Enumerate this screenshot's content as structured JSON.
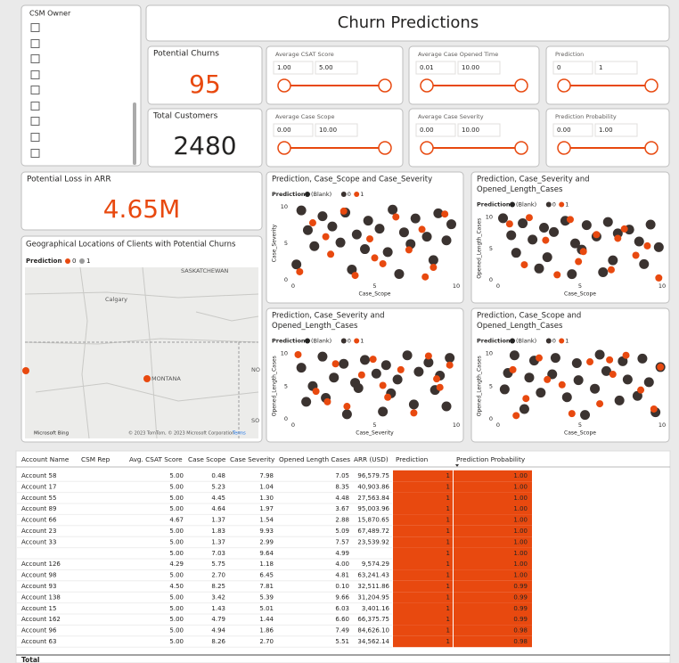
{
  "header": {
    "title": "Churn Predictions"
  },
  "csm_slicer": {
    "title": "CSM Owner"
  },
  "cards": [
    {
      "label": "Potential Churns",
      "value": "95"
    },
    {
      "label": "Total Customers",
      "value": "2480"
    },
    {
      "label": "Potential Loss in ARR",
      "value": "4.65M"
    }
  ],
  "slicers": [
    {
      "label": "Average CSAT Score",
      "min": "1.00",
      "max": "5.00"
    },
    {
      "label": "Average Case Opened Time",
      "min": "0.01",
      "max": "10.00"
    },
    {
      "label": "Prediction",
      "min": "0",
      "max": "1"
    },
    {
      "label": "Average Case Scope",
      "min": "0.00",
      "max": "10.00"
    },
    {
      "label": "Average Case Severity",
      "min": "0.00",
      "max": "10.00"
    },
    {
      "label": "Prediction Probability",
      "min": "0.00",
      "max": "1.00"
    }
  ],
  "map": {
    "title": "Geographical Locations of Clients with Potential Churns",
    "legend_title": "Prediction",
    "legend": [
      {
        "name": "0",
        "color": "#e8490f"
      },
      {
        "name": "1",
        "color": "#9a9a9a"
      }
    ],
    "places": [
      "SASKATCHEWAN",
      "Calgary",
      "MONTANA",
      "NO",
      "SO"
    ],
    "attribution": "© 2023 TomTom, © 2023 Microsoft Corporation",
    "terms": "Terms",
    "brand": "Microsoft Bing"
  },
  "chart_data": [
    {
      "type": "scatter",
      "title": "Prediction, Case_Scope and Case_Severity",
      "legend_title": "Prediction",
      "x_label": "Case_Scope",
      "y_label": "Case_Severity",
      "xlim": [
        0,
        10
      ],
      "ylim": [
        0,
        10
      ],
      "xticks": [
        0,
        5,
        10
      ],
      "yticks": [
        0,
        5,
        10
      ],
      "series": [
        {
          "name": "(Blank)",
          "color": "#252423",
          "x": [],
          "y": []
        },
        {
          "name": "0",
          "color": "#3b3330",
          "x": [
            0.5,
            1.8,
            3.2,
            4.6,
            6.1,
            7.5,
            8.9,
            9.7,
            0.9,
            2.4,
            3.9,
            5.3,
            6.8,
            8.2,
            9.4,
            1.3,
            2.9,
            4.4,
            5.8,
            7.2,
            8.6,
            0.2,
            3.6,
            6.5
          ],
          "y": [
            9.5,
            8.7,
            9.2,
            8.1,
            9.6,
            8.4,
            9.1,
            7.6,
            6.8,
            7.3,
            6.2,
            7.0,
            6.5,
            5.9,
            5.4,
            4.6,
            5.1,
            4.2,
            3.8,
            4.9,
            2.7,
            2.1,
            1.4,
            0.8
          ]
        },
        {
          "name": "1",
          "color": "#e8490f",
          "x": [
            0.4,
            1.2,
            2.3,
            3.1,
            3.8,
            4.7,
            5.5,
            6.3,
            7.1,
            7.9,
            8.6,
            9.3,
            2.0,
            5.0,
            8.1
          ],
          "y": [
            1.1,
            7.8,
            3.5,
            9.4,
            0.6,
            5.6,
            2.2,
            8.6,
            4.1,
            6.9,
            1.7,
            9.0,
            5.9,
            3.0,
            0.4
          ]
        }
      ]
    },
    {
      "type": "scatter",
      "title": [
        "Prediction, Case_Severity and",
        "Opened_Length_Cases"
      ],
      "legend_title": "Prediction",
      "x_label": "Case_Scope",
      "y_label": "Opened_Length_Cases",
      "xlim": [
        0,
        10
      ],
      "ylim": [
        0,
        10
      ],
      "xticks": [
        0,
        5,
        10
      ],
      "yticks": [
        0,
        5,
        10
      ],
      "series": [
        {
          "name": "(Blank)",
          "color": "#252423",
          "x": [],
          "y": []
        },
        {
          "name": "0",
          "color": "#3b3330",
          "x": [
            0.3,
            1.5,
            2.8,
            4.1,
            5.4,
            6.7,
            8.0,
            9.3,
            0.8,
            2.1,
            3.4,
            4.7,
            6.0,
            7.3,
            8.6,
            9.8,
            1.1,
            3.0,
            5.1,
            7.0,
            8.9,
            2.5,
            4.5,
            6.4
          ],
          "y": [
            9.8,
            9.0,
            8.3,
            9.4,
            8.7,
            9.2,
            8.0,
            8.8,
            7.1,
            6.4,
            7.6,
            5.8,
            6.9,
            7.4,
            6.1,
            5.2,
            4.3,
            3.6,
            4.8,
            3.1,
            2.5,
            1.8,
            0.9,
            1.2
          ]
        },
        {
          "name": "1",
          "color": "#e8490f",
          "x": [
            0.7,
            1.6,
            2.9,
            3.6,
            4.4,
            5.2,
            6.0,
            6.9,
            7.7,
            8.4,
            9.1,
            9.8,
            1.9,
            4.9,
            7.3
          ],
          "y": [
            8.9,
            2.4,
            6.3,
            0.8,
            9.6,
            4.5,
            7.2,
            1.6,
            8.1,
            3.9,
            5.4,
            0.3,
            9.9,
            2.9,
            6.6
          ]
        }
      ]
    },
    {
      "type": "scatter",
      "title": [
        "Prediction, Case_Severity and",
        "Opened_Length_Cases"
      ],
      "legend_title": "Prediction",
      "x_label": "Case_Severity",
      "y_label": "Opened_Length_Cases",
      "xlim": [
        0,
        10
      ],
      "ylim": [
        0,
        10
      ],
      "xticks": [
        0,
        5,
        10
      ],
      "yticks": [
        0,
        5,
        10
      ],
      "series": [
        {
          "name": "(Blank)",
          "color": "#252423",
          "x": [],
          "y": []
        },
        {
          "name": "0",
          "color": "#3b3330",
          "x": [
            9.6,
            8.3,
            7.0,
            5.7,
            4.4,
            3.1,
            1.8,
            0.5,
            9.0,
            7.7,
            6.4,
            5.1,
            3.8,
            2.5,
            1.2,
            8.7,
            6.0,
            4.0,
            2.0,
            0.8,
            9.4,
            5.5,
            3.3,
            7.4
          ],
          "y": [
            9.3,
            8.6,
            9.7,
            8.2,
            9.0,
            8.4,
            9.5,
            7.8,
            6.6,
            7.2,
            6.0,
            6.9,
            5.5,
            6.3,
            5.0,
            4.4,
            3.9,
            4.7,
            3.2,
            2.6,
            1.9,
            1.1,
            0.7,
            2.2
          ]
        },
        {
          "name": "1",
          "color": "#e8490f",
          "x": [
            0.3,
            1.4,
            2.6,
            3.3,
            4.2,
            4.9,
            5.8,
            6.6,
            7.4,
            8.3,
            9.0,
            9.6,
            2.1,
            5.5,
            8.8
          ],
          "y": [
            9.8,
            4.2,
            8.4,
            1.9,
            6.7,
            9.1,
            3.3,
            7.5,
            0.9,
            9.6,
            4.8,
            8.2,
            2.6,
            5.1,
            6.1
          ]
        }
      ]
    },
    {
      "type": "scatter",
      "title": [
        "Prediction, Case_Scope and",
        "Opened_Length_Cases"
      ],
      "legend_title": "Prediction",
      "x_label": "Case_Scope",
      "y_label": "Opened_Length_Cases",
      "xlim": [
        0,
        10
      ],
      "ylim": [
        0,
        10
      ],
      "xticks": [
        0,
        5,
        10
      ],
      "yticks": [
        0,
        5,
        10
      ],
      "series": [
        {
          "name": "(Blank)",
          "color": "#252423",
          "x": [],
          "y": []
        },
        {
          "name": "0",
          "color": "#3b3330",
          "x": [
            1.0,
            2.2,
            3.5,
            4.8,
            6.2,
            7.6,
            8.8,
            9.9,
            0.6,
            1.9,
            3.3,
            4.9,
            6.6,
            7.9,
            9.2,
            0.4,
            2.6,
            4.2,
            5.9,
            7.4,
            8.5,
            1.6,
            5.3,
            9.6
          ],
          "y": [
            9.7,
            8.9,
            9.3,
            8.5,
            9.8,
            8.8,
            9.2,
            7.9,
            7.0,
            6.3,
            6.8,
            5.9,
            7.3,
            6.0,
            5.6,
            4.5,
            4.0,
            3.3,
            4.6,
            2.8,
            3.5,
            1.5,
            0.6,
            1.0
          ]
        },
        {
          "name": "1",
          "color": "#e8490f",
          "x": [
            0.9,
            1.7,
            2.5,
            3.9,
            4.5,
            5.6,
            6.2,
            7.0,
            7.8,
            8.7,
            9.5,
            1.1,
            3.0,
            6.8,
            9.9
          ],
          "y": [
            7.5,
            3.1,
            9.3,
            5.2,
            0.8,
            8.7,
            2.3,
            6.8,
            9.7,
            4.4,
            1.5,
            0.5,
            6.0,
            9.0,
            7.9
          ]
        }
      ]
    }
  ],
  "table": {
    "headers": [
      "Account Name",
      "CSM Rep",
      "Avg. CSAT Score",
      "Case Scope",
      "Case Severity",
      "Opened Length Cases",
      "ARR (USD)",
      "Prediction",
      "Prediction Probability"
    ],
    "rows": [
      [
        "Account 58",
        null,
        "5.00",
        "0.48",
        "7.98",
        "7.05",
        "96,579.75",
        "1",
        "1.00"
      ],
      [
        "Account 17",
        null,
        "5.00",
        "5.23",
        "1.04",
        "8.35",
        "40,903.86",
        "1",
        "1.00"
      ],
      [
        "Account 55",
        null,
        "5.00",
        "4.45",
        "1.30",
        "4.48",
        "27,563.84",
        "1",
        "1.00"
      ],
      [
        "Account 89",
        null,
        "5.00",
        "4.64",
        "1.97",
        "3.67",
        "95,003.96",
        "1",
        "1.00"
      ],
      [
        "Account 66",
        null,
        "4.67",
        "1.37",
        "1.54",
        "2.88",
        "15,870.65",
        "1",
        "1.00"
      ],
      [
        "Account 23",
        null,
        "5.00",
        "1.83",
        "9.93",
        "5.09",
        "67,489.72",
        "1",
        "1.00"
      ],
      [
        "Account 33",
        null,
        "5.00",
        "1.37",
        "2.99",
        "7.57",
        "23,539.92",
        "1",
        "1.00"
      ],
      [
        null,
        null,
        "5.00",
        "7.03",
        "9.64",
        "4.99",
        null,
        "1",
        "1.00"
      ],
      [
        "Account 126",
        null,
        "4.29",
        "5.75",
        "1.18",
        "4.00",
        "9,574.29",
        "1",
        "1.00"
      ],
      [
        "Account 98",
        null,
        "5.00",
        "2.70",
        "6.45",
        "4.81",
        "63,241.43",
        "1",
        "1.00"
      ],
      [
        "Account 93",
        null,
        "4.50",
        "8.25",
        "7.81",
        "0.10",
        "32,511.86",
        "1",
        "0.99"
      ],
      [
        "Account 138",
        null,
        "5.00",
        "3.42",
        "5.39",
        "9.66",
        "31,204.95",
        "1",
        "0.99"
      ],
      [
        "Account 15",
        null,
        "5.00",
        "1.43",
        "5.01",
        "6.03",
        "3,401.16",
        "1",
        "0.99"
      ],
      [
        "Account 162",
        null,
        "5.00",
        "4.79",
        "1.44",
        "6.60",
        "66,375.75",
        "1",
        "0.99"
      ],
      [
        "Account 96",
        null,
        "5.00",
        "4.94",
        "1.86",
        "7.49",
        "84,626.10",
        "1",
        "0.98"
      ],
      [
        "Account 63",
        null,
        "5.00",
        "8.26",
        "2.70",
        "5.51",
        "34,562.14",
        "1",
        "0.98"
      ]
    ],
    "total_label": "Total"
  }
}
